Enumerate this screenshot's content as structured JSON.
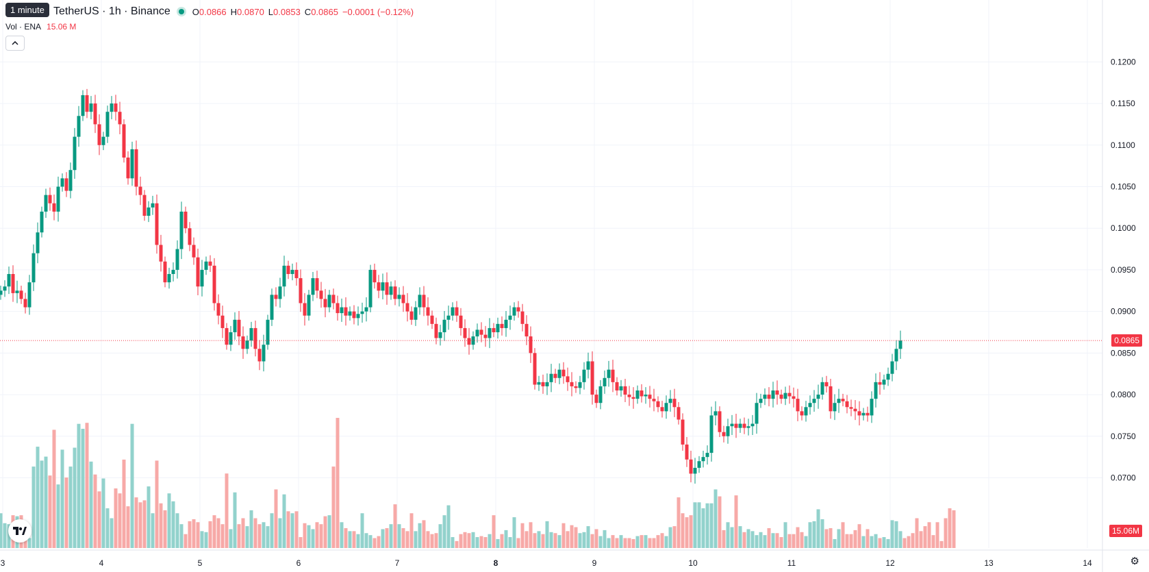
{
  "legend": {
    "symbol": "TetherUS · 1h · Binance",
    "tooltip": "1 minute",
    "ohlc": [
      {
        "k": "O",
        "v": "0.0866"
      },
      {
        "k": "H",
        "v": "0.0870"
      },
      {
        "k": "L",
        "v": "0.0853"
      },
      {
        "k": "C",
        "v": "0.0865"
      }
    ],
    "change": "−0.0001 (−0.12%)"
  },
  "volume": {
    "label": "Vol · ENA",
    "value": "15.06 M",
    "tag": "15.06M"
  },
  "last_price": "0.0865",
  "colors": {
    "up": "#089981",
    "down": "#f23645",
    "up_vol": "#92d2cc",
    "down_vol": "#f7a9a7",
    "grid": "#f0f3fa"
  },
  "icons": {
    "collapse": "chevron-up-icon",
    "logo": "tradingview-logo-icon",
    "settings": "gear-icon"
  },
  "chart_data": {
    "type": "candlestick",
    "price_axis_labels": [
      "0.1200",
      "0.1150",
      "0.1100",
      "0.1050",
      "0.1000",
      "0.0950",
      "0.0900",
      "0.0850",
      "0.0800",
      "0.0750",
      "0.0700"
    ],
    "price_ticks": [
      0.12,
      0.115,
      0.11,
      0.105,
      0.1,
      0.095,
      0.09,
      0.085,
      0.08,
      0.075,
      0.07
    ],
    "ylim": [
      0.0665,
      0.1225
    ],
    "x_ticks": [
      {
        "label": "3",
        "t": 0.5
      },
      {
        "label": "4",
        "t": 24.5
      },
      {
        "label": "5",
        "t": 48.5
      },
      {
        "label": "6",
        "t": 72.5
      },
      {
        "label": "7",
        "t": 96.5
      },
      {
        "label": "8",
        "t": 120.5,
        "bold": true
      },
      {
        "label": "9",
        "t": 144.5
      },
      {
        "label": "10",
        "t": 168.5
      },
      {
        "label": "11",
        "t": 192.5
      },
      {
        "label": "12",
        "t": 216.5
      },
      {
        "label": "13",
        "t": 240.5
      },
      {
        "label": "14",
        "t": 264.5
      }
    ],
    "closes": [
      0.0925,
      0.093,
      0.0945,
      0.0922,
      0.0925,
      0.0915,
      0.0905,
      0.0935,
      0.097,
      0.0995,
      0.102,
      0.104,
      0.103,
      0.102,
      0.105,
      0.106,
      0.1045,
      0.107,
      0.111,
      0.1135,
      0.116,
      0.114,
      0.115,
      0.1125,
      0.11,
      0.111,
      0.114,
      0.115,
      0.114,
      0.1125,
      0.1085,
      0.106,
      0.1095,
      0.105,
      0.104,
      0.1015,
      0.1025,
      0.103,
      0.098,
      0.096,
      0.0935,
      0.0945,
      0.095,
      0.0975,
      0.102,
      0.1,
      0.098,
      0.0965,
      0.093,
      0.095,
      0.096,
      0.0955,
      0.091,
      0.0895,
      0.088,
      0.086,
      0.0875,
      0.089,
      0.087,
      0.0855,
      0.0865,
      0.088,
      0.0855,
      0.084,
      0.086,
      0.089,
      0.092,
      0.0915,
      0.093,
      0.0955,
      0.0945,
      0.095,
      0.094,
      0.091,
      0.0895,
      0.092,
      0.094,
      0.0925,
      0.0915,
      0.0905,
      0.092,
      0.091,
      0.0898,
      0.0905,
      0.0895,
      0.09,
      0.0892,
      0.0897,
      0.09,
      0.0905,
      0.095,
      0.0935,
      0.0925,
      0.0935,
      0.092,
      0.093,
      0.0915,
      0.092,
      0.091,
      0.09,
      0.089,
      0.0905,
      0.092,
      0.0905,
      0.0895,
      0.0885,
      0.0868,
      0.0875,
      0.089,
      0.0895,
      0.0905,
      0.0895,
      0.088,
      0.0868,
      0.086,
      0.087,
      0.0878,
      0.0872,
      0.0868,
      0.088,
      0.0875,
      0.0885,
      0.088,
      0.089,
      0.0895,
      0.0905,
      0.09,
      0.0885,
      0.087,
      0.085,
      0.0812,
      0.0815,
      0.081,
      0.0815,
      0.0825,
      0.082,
      0.083,
      0.0822,
      0.0815,
      0.081,
      0.0808,
      0.0815,
      0.083,
      0.084,
      0.08,
      0.079,
      0.081,
      0.082,
      0.083,
      0.0815,
      0.0805,
      0.081,
      0.08,
      0.0797,
      0.0795,
      0.0805,
      0.0798,
      0.08,
      0.0795,
      0.0792,
      0.0785,
      0.078,
      0.079,
      0.0795,
      0.0785,
      0.077,
      0.074,
      0.0722,
      0.0705,
      0.0712,
      0.072,
      0.0725,
      0.073,
      0.0775,
      0.078,
      0.0755,
      0.075,
      0.0762,
      0.0765,
      0.076,
      0.0765,
      0.076,
      0.0762,
      0.0765,
      0.079,
      0.0795,
      0.08,
      0.0795,
      0.0805,
      0.08,
      0.0795,
      0.0802,
      0.0798,
      0.0795,
      0.078,
      0.0775,
      0.0785,
      0.079,
      0.0795,
      0.08,
      0.0815,
      0.081,
      0.078,
      0.079,
      0.0795,
      0.0792,
      0.0785,
      0.0783,
      0.078,
      0.0775,
      0.0778,
      0.0775,
      0.0795,
      0.0815,
      0.0812,
      0.0818,
      0.0825,
      0.084,
      0.0855,
      0.0865
    ],
    "volumes": [
      3.5,
      2.5,
      2.4,
      3.3,
      3.2,
      3.3,
      2.4,
      1.0,
      8.2,
      10.2,
      8.8,
      9.2,
      7.3,
      11.9,
      6.4,
      9.9,
      7.1,
      8.2,
      10.1,
      12.5,
      12.0,
      12.6,
      8.7,
      7.4,
      5.7,
      7.0,
      4.0,
      3.0,
      6.0,
      5.5,
      8.9,
      4.2,
      12.5,
      5.1,
      4.6,
      4.8,
      6.2,
      3.5,
      8.8,
      4.5,
      3.8,
      5.5,
      4.7,
      3.5,
      2.4,
      1.4,
      2.7,
      2.9,
      2.6,
      1.7,
      1.6,
      2.7,
      3.3,
      3.0,
      2.4,
      7.5,
      1.9,
      5.6,
      2.4,
      3.0,
      2.2,
      3.8,
      3.0,
      2.4,
      2.6,
      2.2,
      3.5,
      5.9,
      3.0,
      5.4,
      3.7,
      3.5,
      3.7,
      1.1,
      2.5,
      2.3,
      1.9,
      2.6,
      2.4,
      3.2,
      3.3,
      8.2,
      13.1,
      2.6,
      2.0,
      1.7,
      1.7,
      1.4,
      3.5,
      1.5,
      1.3,
      1.0,
      1.2,
      1.9,
      2.0,
      2.4,
      4.4,
      2.4,
      2.0,
      1.7,
      3.5,
      1.7,
      2.5,
      2.8,
      1.7,
      1.4,
      1.5,
      2.4,
      3.3,
      4.3,
      1.1,
      0.7,
      1.4,
      1.6,
      1.5,
      1.6,
      1.1,
      1.2,
      1.1,
      1.4,
      3.3,
      0.9,
      1.4,
      1.8,
      1.1,
      3.1,
      1.0,
      2.5,
      1.7,
      2.6,
      1.5,
      1.7,
      1.4,
      2.7,
      1.6,
      1.5,
      1.3,
      2.5,
      1.7,
      2.3,
      2.1,
      1.5,
      1.6,
      2.2,
      1.4,
      1.9,
      1.2,
      1.8,
      1.0,
      1.3,
      1.0,
      1.3,
      1.0,
      1.0,
      0.9,
      1.2,
      1.3,
      1.3,
      1.0,
      1.0,
      1.3,
      1.5,
      1.2,
      2.1,
      2.2,
      5.1,
      3.5,
      3.1,
      3.3,
      4.6,
      4.6,
      4.0,
      4.5,
      4.5,
      5.9,
      5.2,
      1.8,
      2.6,
      2.1,
      5.3,
      2.2,
      1.6,
      1.9,
      1.7,
      1.3,
      1.6,
      1.3,
      2.0,
      1.5,
      1.5,
      1.1,
      2.6,
      1.4,
      1.4,
      2.1,
      1.6,
      1.2,
      2.6,
      2.7,
      3.9,
      2.9,
      1.9,
      2.0,
      0.9,
      1.9,
      2.6,
      1.4,
      1.4,
      1.8,
      2.4,
      1.2,
      1.9,
      1.2,
      1.4,
      1.0,
      1.1,
      0.9,
      2.8,
      2.7,
      1.7,
      1.0,
      1.2,
      1.5,
      3.0,
      1.7,
      2.2,
      2.6,
      1.3,
      2.6,
      0.7,
      3.0,
      4.0,
      3.8
    ]
  }
}
